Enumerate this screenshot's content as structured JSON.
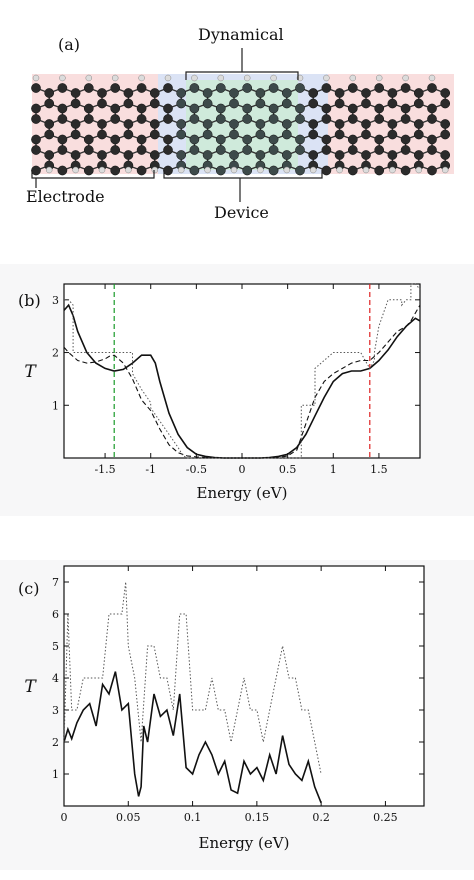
{
  "figure": {
    "panel_a": {
      "label": "(a)",
      "annotations": {
        "dynamical": "Dynamical",
        "electrode": "Electrode",
        "device": "Device"
      },
      "colors": {
        "electrode_region": "#f9dede",
        "device_region": "#dbe3f5",
        "dynamical_region": "#cfeadb",
        "atom_dark": "#2b2b2b",
        "atom_device": "#3d4a4a",
        "hydrogen": "#dcdcdc"
      }
    },
    "panel_b": {
      "label": "(b)"
    },
    "panel_c": {
      "label": "(c)"
    }
  },
  "chart_data": [
    {
      "type": "line",
      "title": "",
      "xlabel": "Energy (eV)",
      "ylabel": "T",
      "xlim": [
        -1.95,
        1.95
      ],
      "ylim": [
        0,
        3.3
      ],
      "xticks": [
        "-1.5",
        "-1",
        "-0.5",
        "0",
        "0.5",
        "1",
        "1.5"
      ],
      "xtick_values": [
        -1.5,
        -1,
        -0.5,
        0,
        0.5,
        1,
        1.5
      ],
      "yticks": [
        "1",
        "2",
        "3"
      ],
      "ytick_values": [
        1,
        2,
        3
      ],
      "vlines": [
        {
          "x": -1.4,
          "color": "#1a9a2a",
          "style": "dashed"
        },
        {
          "x": 1.4,
          "color": "#d22",
          "style": "dashed"
        }
      ],
      "series": [
        {
          "style": "solid",
          "x": [
            -1.95,
            -1.9,
            -1.85,
            -1.8,
            -1.7,
            -1.6,
            -1.5,
            -1.4,
            -1.3,
            -1.2,
            -1.1,
            -1.0,
            -0.95,
            -0.9,
            -0.8,
            -0.7,
            -0.6,
            -0.5,
            -0.4,
            -0.3,
            -0.2,
            0,
            0.2,
            0.3,
            0.4,
            0.5,
            0.6,
            0.7,
            0.8,
            0.9,
            1.0,
            1.1,
            1.2,
            1.3,
            1.4,
            1.5,
            1.6,
            1.7,
            1.8,
            1.9,
            1.95
          ],
          "y": [
            2.8,
            2.9,
            2.7,
            2.4,
            2.0,
            1.8,
            1.7,
            1.65,
            1.68,
            1.8,
            1.95,
            1.95,
            1.8,
            1.45,
            0.85,
            0.45,
            0.2,
            0.07,
            0.03,
            0.01,
            0.0,
            0.0,
            0.0,
            0.01,
            0.03,
            0.07,
            0.2,
            0.45,
            0.8,
            1.15,
            1.45,
            1.6,
            1.65,
            1.65,
            1.7,
            1.85,
            2.05,
            2.3,
            2.5,
            2.65,
            2.6
          ]
        },
        {
          "style": "dashed",
          "x": [
            -1.95,
            -1.9,
            -1.8,
            -1.7,
            -1.6,
            -1.5,
            -1.45,
            -1.4,
            -1.3,
            -1.2,
            -1.1,
            -1.0,
            -0.9,
            -0.8,
            -0.7,
            -0.6,
            -0.5,
            -0.4,
            -0.3,
            0,
            0.3,
            0.4,
            0.5,
            0.6,
            0.7,
            0.8,
            0.9,
            1.0,
            1.1,
            1.2,
            1.3,
            1.4,
            1.5,
            1.6,
            1.7,
            1.8,
            1.85,
            1.9,
            1.95
          ],
          "y": [
            2.1,
            2.0,
            1.85,
            1.8,
            1.82,
            1.88,
            1.93,
            1.95,
            1.8,
            1.5,
            1.1,
            0.9,
            0.55,
            0.25,
            0.1,
            0.04,
            0.02,
            0.01,
            0.0,
            0.0,
            0.0,
            0.01,
            0.04,
            0.15,
            0.65,
            1.15,
            1.45,
            1.6,
            1.7,
            1.8,
            1.85,
            1.85,
            2.0,
            2.2,
            2.4,
            2.5,
            2.6,
            2.75,
            2.9
          ]
        },
        {
          "style": "dotted",
          "x": [
            -1.95,
            -1.9,
            -1.85,
            -1.85,
            -1.8,
            -1.6,
            -1.4,
            -1.2,
            -1.2,
            -1.1,
            -1.0,
            -1.0,
            -0.9,
            -0.8,
            -0.7,
            -0.65,
            -0.6,
            -0.5,
            0.6,
            0.65,
            0.65,
            0.8,
            0.8,
            1.0,
            1.2,
            1.3,
            1.35,
            1.4,
            1.45,
            1.45,
            1.5,
            1.6,
            1.75,
            1.75,
            1.8,
            1.85,
            1.85,
            1.9,
            1.95
          ],
          "y": [
            3.0,
            3.0,
            2.9,
            2.0,
            2.0,
            2.0,
            2.0,
            2.0,
            1.6,
            1.3,
            1.05,
            0.95,
            0.7,
            0.45,
            0.2,
            0.05,
            0.0,
            0.0,
            0.0,
            0.0,
            1.0,
            1.0,
            1.7,
            2.0,
            2.0,
            2.0,
            1.85,
            1.7,
            1.85,
            2.0,
            2.5,
            3.0,
            3.0,
            2.9,
            3.0,
            3.0,
            3.5,
            3.3,
            3.2
          ]
        }
      ]
    },
    {
      "type": "line",
      "title": "",
      "xlabel": "Energy (eV)",
      "ylabel": "T",
      "xlim": [
        0,
        0.28
      ],
      "ylim": [
        0,
        7.5
      ],
      "xticks": [
        "0",
        "0.05",
        "0.1",
        "0.15",
        "0.2",
        "0.25"
      ],
      "xtick_values": [
        0,
        0.05,
        0.1,
        0.15,
        0.2,
        0.25
      ],
      "yticks": [
        "1",
        "2",
        "3",
        "4",
        "5",
        "6",
        "7"
      ],
      "ytick_values": [
        1,
        2,
        3,
        4,
        5,
        6,
        7
      ],
      "series": [
        {
          "style": "solid",
          "x": [
            0,
            0.003,
            0.006,
            0.01,
            0.015,
            0.02,
            0.025,
            0.03,
            0.035,
            0.04,
            0.045,
            0.05,
            0.055,
            0.058,
            0.06,
            0.062,
            0.065,
            0.07,
            0.075,
            0.08,
            0.085,
            0.09,
            0.095,
            0.1,
            0.105,
            0.11,
            0.115,
            0.12,
            0.125,
            0.13,
            0.135,
            0.14,
            0.145,
            0.15,
            0.155,
            0.16,
            0.165,
            0.17,
            0.175,
            0.18,
            0.185,
            0.19,
            0.195,
            0.2
          ],
          "y": [
            2.0,
            2.4,
            2.1,
            2.6,
            3.0,
            3.2,
            2.5,
            3.8,
            3.5,
            4.2,
            3.0,
            3.2,
            1.0,
            0.3,
            0.6,
            2.5,
            2.0,
            3.5,
            2.8,
            3.0,
            2.2,
            3.5,
            1.2,
            1.0,
            1.6,
            2.0,
            1.6,
            1.0,
            1.4,
            0.5,
            0.4,
            1.4,
            1.0,
            1.2,
            0.8,
            1.6,
            1.0,
            2.2,
            1.3,
            1.0,
            0.8,
            1.4,
            0.6,
            0.1
          ]
        },
        {
          "style": "dotted",
          "x": [
            0,
            0.003,
            0.006,
            0.01,
            0.015,
            0.02,
            0.025,
            0.03,
            0.035,
            0.04,
            0.045,
            0.048,
            0.05,
            0.055,
            0.06,
            0.065,
            0.07,
            0.075,
            0.08,
            0.085,
            0.09,
            0.095,
            0.1,
            0.105,
            0.11,
            0.115,
            0.12,
            0.125,
            0.13,
            0.135,
            0.14,
            0.145,
            0.15,
            0.155,
            0.16,
            0.165,
            0.17,
            0.175,
            0.18,
            0.185,
            0.19,
            0.195,
            0.2
          ],
          "y": [
            2.0,
            6.0,
            3.0,
            3.0,
            4.0,
            4.0,
            4.0,
            4.0,
            6.0,
            6.0,
            6.0,
            7.0,
            5.0,
            4.0,
            2.0,
            5.0,
            5.0,
            4.0,
            4.0,
            3.0,
            6.0,
            6.0,
            3.0,
            3.0,
            3.0,
            4.0,
            3.0,
            3.0,
            2.0,
            3.0,
            4.0,
            3.0,
            3.0,
            2.0,
            3.0,
            4.0,
            5.0,
            4.0,
            4.0,
            3.0,
            3.0,
            2.0,
            1.0
          ]
        }
      ]
    }
  ]
}
